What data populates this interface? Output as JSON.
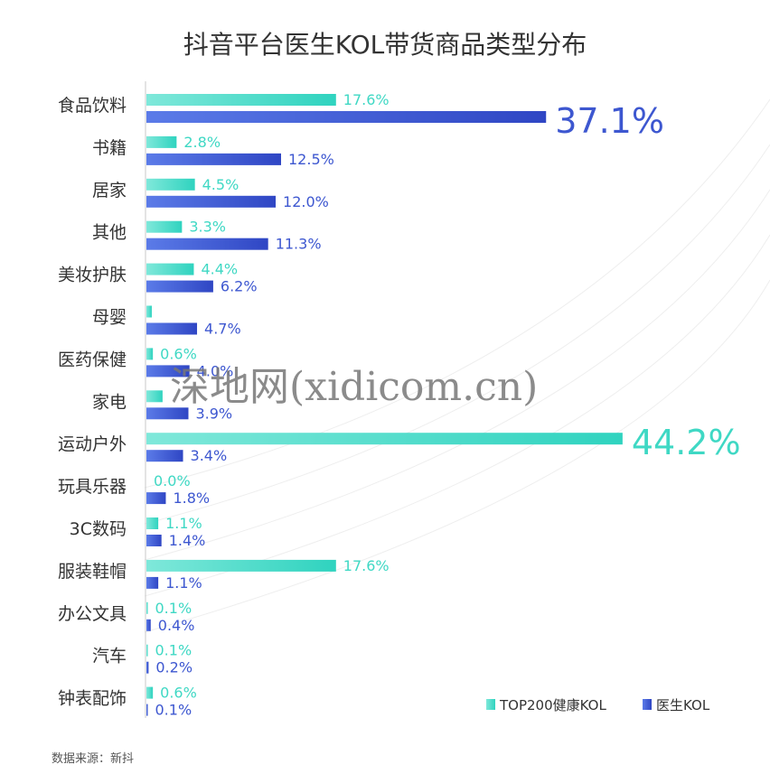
{
  "colors": {
    "kol200": "#3fd8c4",
    "doctor": "#3d57d0",
    "axis": "#c8c8c8"
  },
  "chart_data": {
    "type": "bar",
    "orientation": "horizontal",
    "title": "抖音平台医生KOL带货商品类型分布",
    "categories": [
      "食品饮料",
      "书籍",
      "居家",
      "其他",
      "美妆护肤",
      "母婴",
      "医药保健",
      "家电",
      "运动户外",
      "玩具乐器",
      "3C数码",
      "服装鞋帽",
      "办公文具",
      "汽车",
      "钟表配饰"
    ],
    "series": [
      {
        "name": "TOP200健康KOL",
        "values": [
          17.6,
          2.8,
          4.5,
          3.3,
          4.4,
          0.5,
          0.6,
          1.5,
          44.2,
          0.0,
          1.1,
          17.6,
          0.1,
          0.1,
          0.6
        ],
        "labels": [
          "17.6%",
          "2.8%",
          "4.5%",
          "3.3%",
          "4.4%",
          "",
          "0.6%",
          "",
          "44.2%",
          "0.0%",
          "1.1%",
          "17.6%",
          "0.1%",
          "0.1%",
          "0.6%"
        ]
      },
      {
        "name": "医生KOL",
        "values": [
          37.1,
          12.5,
          12.0,
          11.3,
          6.2,
          4.7,
          4.0,
          3.9,
          3.4,
          1.8,
          1.4,
          1.1,
          0.4,
          0.2,
          0.1
        ],
        "labels": [
          "37.1%",
          "12.5%",
          "12.0%",
          "11.3%",
          "6.2%",
          "4.7%",
          "4.0%",
          "3.9%",
          "3.4%",
          "1.8%",
          "1.4%",
          "1.1%",
          "0.4%",
          "0.2%",
          "0.1%"
        ]
      }
    ],
    "highlight_labels": [
      "37.1%",
      "44.2%"
    ],
    "legend_position": "bottom-right",
    "grid": false
  },
  "source_note": "数据来源：新抖",
  "watermark": "深地网(xidicom.cn)"
}
